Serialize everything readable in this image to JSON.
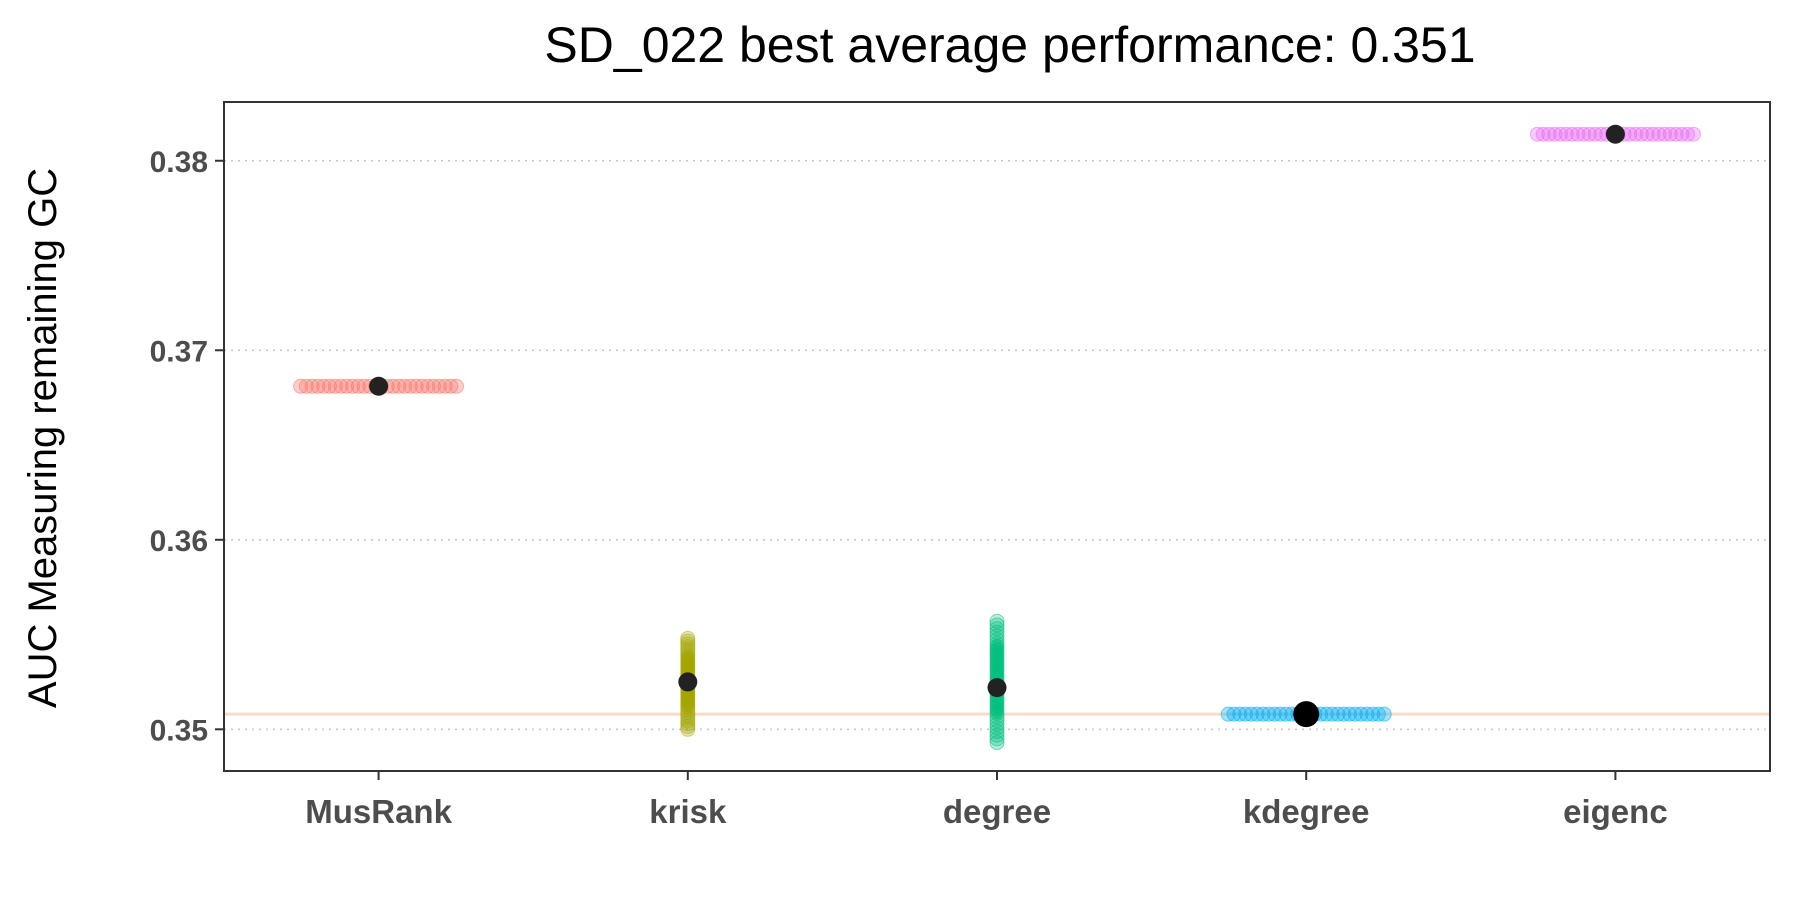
{
  "chart_data": {
    "type": "scatter",
    "title": "SD_022 best average performance: 0.351",
    "ylabel": "AUC Measuring remaining GC",
    "xlabel": "",
    "categories": [
      "MusRank",
      "krisk",
      "degree",
      "kdegree",
      "eigenc"
    ],
    "ylim": [
      0.3478,
      0.3831
    ],
    "yticks": [
      0.35,
      0.36,
      0.37,
      0.38
    ],
    "ytick_labels": [
      "0.35",
      "0.36",
      "0.37",
      "0.38"
    ],
    "grid": "horizontal-dotted",
    "legend": "none",
    "reference_line": {
      "y": 0.3508,
      "color": "#f5dcc6"
    },
    "mean_color": "#222222",
    "series": [
      {
        "category": "MusRank",
        "color": "#f8766d",
        "mean": 0.3681,
        "min": 0.3681,
        "max": 0.3681,
        "spread": "horizontal"
      },
      {
        "category": "krisk",
        "color": "#a3a500",
        "mean": 0.3525,
        "min": 0.35,
        "max": 0.3548,
        "spread": "vertical"
      },
      {
        "category": "degree",
        "color": "#00bf7d",
        "mean": 0.3522,
        "min": 0.3493,
        "max": 0.3557,
        "spread": "vertical"
      },
      {
        "category": "kdegree",
        "color": "#00b0f6",
        "mean": 0.3508,
        "min": 0.3508,
        "max": 0.3508,
        "spread": "horizontal",
        "best": true
      },
      {
        "category": "eigenc",
        "color": "#e76bf3",
        "mean": 0.3814,
        "min": 0.3814,
        "max": 0.3814,
        "spread": "horizontal"
      }
    ]
  }
}
